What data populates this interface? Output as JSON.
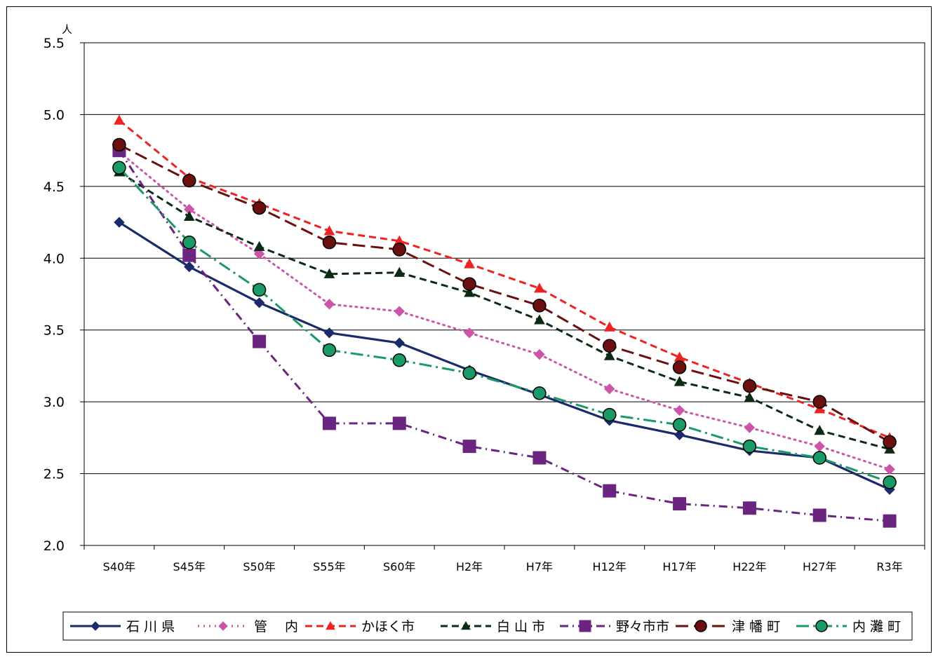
{
  "chart_data": {
    "type": "line",
    "unit_label": "人",
    "categories": [
      "S40年",
      "S45年",
      "S50年",
      "S55年",
      "S60年",
      "H2年",
      "H7年",
      "H12年",
      "H17年",
      "H22年",
      "H27年",
      "R3年"
    ],
    "ylim": [
      2.0,
      5.5
    ],
    "yticks": [
      "2.0",
      "2.5",
      "3.0",
      "3.5",
      "4.0",
      "4.5",
      "5.0",
      "5.5"
    ],
    "grid": true,
    "legend_position": "bottom",
    "series": [
      {
        "name": "石 川 県",
        "color": "#1b2a6b",
        "dash": "solid",
        "marker": "diamond",
        "values": [
          4.25,
          3.94,
          3.69,
          3.48,
          3.41,
          3.22,
          3.05,
          2.87,
          2.77,
          2.66,
          2.61,
          2.39
        ]
      },
      {
        "name": "管　 内",
        "color": "#cc55aa",
        "dash": "dot",
        "marker": "diamond",
        "values": [
          4.74,
          4.34,
          4.03,
          3.68,
          3.63,
          3.48,
          3.33,
          3.09,
          2.94,
          2.82,
          2.69,
          2.53
        ]
      },
      {
        "name": "かほく市",
        "color": "#ee2222",
        "dash": "dash",
        "marker": "triangle",
        "values": [
          4.96,
          4.56,
          4.38,
          4.19,
          4.12,
          3.96,
          3.79,
          3.52,
          3.31,
          3.13,
          2.95,
          2.75
        ]
      },
      {
        "name": "白 山 市",
        "color": "#0d2a14",
        "dash": "dash",
        "marker": "triangle",
        "values": [
          4.6,
          4.29,
          4.08,
          3.89,
          3.9,
          3.76,
          3.57,
          3.32,
          3.14,
          3.03,
          2.8,
          2.67
        ]
      },
      {
        "name": "野々市市",
        "color": "#6a2580",
        "dash": "dashdot",
        "marker": "square",
        "values": [
          4.75,
          4.02,
          3.42,
          2.85,
          2.85,
          2.69,
          2.61,
          2.38,
          2.29,
          2.26,
          2.21,
          2.17
        ]
      },
      {
        "name": "津 幡 町",
        "color": "#6b0f0f",
        "dash": "longdash",
        "marker": "circle",
        "values": [
          4.79,
          4.54,
          4.35,
          4.11,
          4.06,
          3.82,
          3.67,
          3.39,
          3.24,
          3.11,
          3.0,
          2.72
        ]
      },
      {
        "name": "内 灘 町",
        "color": "#1a9a66",
        "dash": "longdashdot",
        "marker": "circle",
        "values": [
          4.63,
          4.11,
          3.78,
          3.36,
          3.29,
          3.2,
          3.06,
          2.91,
          2.84,
          2.69,
          2.61,
          2.44
        ]
      }
    ]
  }
}
